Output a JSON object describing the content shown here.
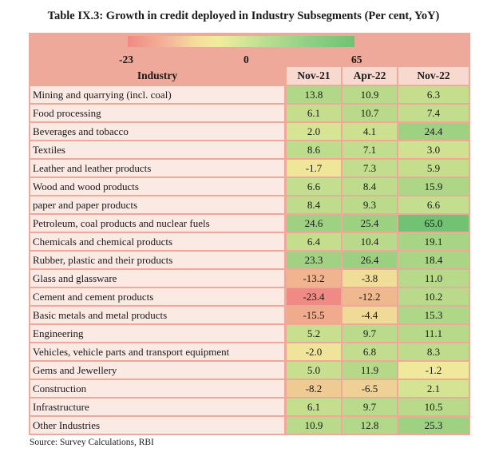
{
  "title": "Table IX.3: Growth in credit deployed in Industry Subsegments (Per cent, YoY)",
  "legend": {
    "min_label": "-23",
    "mid_label": "0",
    "max_label": "65",
    "min": -23,
    "mid": 0,
    "max": 65,
    "low_color": "#f08a84",
    "mid_color": "#f0ed9c",
    "high_color": "#72c274"
  },
  "colors": {
    "frame": "#eea99b",
    "header_cell": "#f7d9cf",
    "name_cell": "#fbe9e4"
  },
  "chart_data": {
    "type": "table",
    "title": "Table IX.3: Growth in credit deployed in Industry Subsegments (Per cent, YoY)",
    "row_header": "Industry",
    "columns": [
      "Nov-21",
      "Apr-22",
      "Nov-22"
    ],
    "rows": [
      {
        "name": "Mining and quarrying (incl. coal)",
        "values": [
          13.8,
          10.9,
          6.3
        ],
        "labels": [
          "13.8",
          "10.9",
          "6.3"
        ]
      },
      {
        "name": "Food processing",
        "values": [
          6.1,
          10.7,
          7.4
        ],
        "labels": [
          "6.1",
          "10.7",
          "7.4"
        ]
      },
      {
        "name": "Beverages and tobacco",
        "values": [
          2.0,
          4.1,
          24.4
        ],
        "labels": [
          "2.0",
          "4.1",
          "24.4"
        ]
      },
      {
        "name": "Textiles",
        "values": [
          8.6,
          7.1,
          3.0
        ],
        "labels": [
          "8.6",
          "7.1",
          "3.0"
        ]
      },
      {
        "name": "Leather and leather products",
        "values": [
          -1.7,
          7.3,
          5.9
        ],
        "labels": [
          "-1.7",
          "7.3",
          "5.9"
        ]
      },
      {
        "name": "Wood and wood products",
        "values": [
          6.6,
          8.4,
          15.9
        ],
        "labels": [
          "6.6",
          "8.4",
          "15.9"
        ]
      },
      {
        "name": "paper and paper products",
        "values": [
          8.4,
          9.3,
          6.6
        ],
        "labels": [
          "8.4",
          "9.3",
          "6.6"
        ]
      },
      {
        "name": "Petroleum, coal products and nuclear fuels",
        "values": [
          24.6,
          25.4,
          65.0
        ],
        "labels": [
          "24.6",
          "25.4",
          "65.0"
        ]
      },
      {
        "name": "Chemicals and chemical products",
        "values": [
          6.4,
          10.4,
          19.1
        ],
        "labels": [
          "6.4",
          "10.4",
          "19.1"
        ]
      },
      {
        "name": "Rubber, plastic and their products",
        "values": [
          23.3,
          26.4,
          18.4
        ],
        "labels": [
          "23.3",
          "26.4",
          "18.4"
        ]
      },
      {
        "name": "Glass and glassware",
        "values": [
          -13.2,
          -3.8,
          11.0
        ],
        "labels": [
          "-13.2",
          "-3.8",
          "11.0"
        ]
      },
      {
        "name": "Cement and cement products",
        "values": [
          -23.4,
          -12.2,
          10.2
        ],
        "labels": [
          "-23.4",
          "-12.2",
          "10.2"
        ]
      },
      {
        "name": "Basic metals and metal products",
        "values": [
          -15.5,
          -4.4,
          15.3
        ],
        "labels": [
          "-15.5",
          "-4.4",
          "15.3"
        ]
      },
      {
        "name": "Engineering",
        "values": [
          5.2,
          9.7,
          11.1
        ],
        "labels": [
          "5.2",
          "9.7",
          "11.1"
        ]
      },
      {
        "name": "Vehicles, vehicle parts and transport equipment",
        "values": [
          -2.0,
          6.8,
          8.3
        ],
        "labels": [
          "-2.0",
          "6.8",
          "8.3"
        ]
      },
      {
        "name": "Gems and Jewellery",
        "values": [
          5.0,
          11.9,
          -1.2
        ],
        "labels": [
          "5.0",
          "11.9",
          "-1.2"
        ]
      },
      {
        "name": "Construction",
        "values": [
          -8.2,
          -6.5,
          2.1
        ],
        "labels": [
          "-8.2",
          "-6.5",
          "2.1"
        ]
      },
      {
        "name": "Infrastructure",
        "values": [
          6.1,
          9.7,
          10.5
        ],
        "labels": [
          "6.1",
          "9.7",
          "10.5"
        ]
      },
      {
        "name": "Other Industries",
        "values": [
          10.9,
          12.8,
          25.3
        ],
        "labels": [
          "10.9",
          "12.8",
          "25.3"
        ]
      }
    ]
  },
  "source": "Source: Survey Calculations, RBI"
}
